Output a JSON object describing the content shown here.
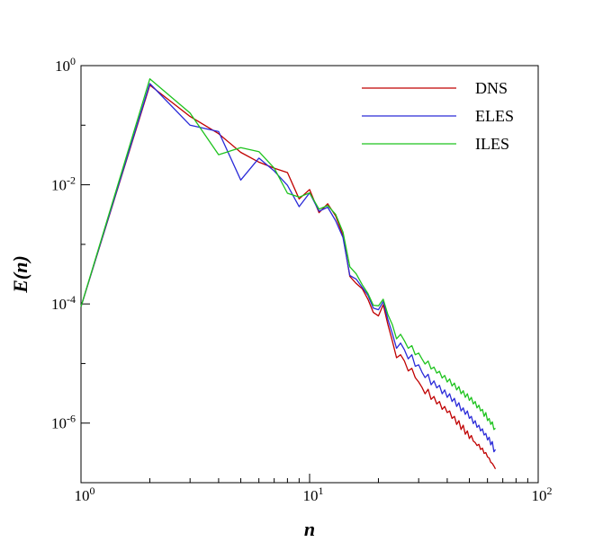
{
  "chart_data": {
    "type": "line",
    "title": "",
    "xlabel": "n",
    "ylabel": "E(n)",
    "xscale": "log",
    "yscale": "log",
    "xlim": [
      1,
      100
    ],
    "ylim": [
      1e-07,
      1
    ],
    "x_ticks": [
      {
        "value": 1,
        "base": "10",
        "exp": "0"
      },
      {
        "value": 10,
        "base": "10",
        "exp": "1"
      },
      {
        "value": 100,
        "base": "10",
        "exp": "2"
      }
    ],
    "y_ticks": [
      {
        "value": 1,
        "base": "10",
        "exp": "0"
      },
      {
        "value": 0.01,
        "base": "10",
        "exp": "-2"
      },
      {
        "value": 0.0001,
        "base": "10",
        "exp": "-4"
      },
      {
        "value": 1e-06,
        "base": "10",
        "exp": "-6"
      }
    ],
    "grid": false,
    "legend_position": "top-right",
    "series": [
      {
        "name": "DNS",
        "color": "#c00000",
        "x": [
          1,
          2,
          3,
          4,
          5,
          6,
          7,
          8,
          9,
          10,
          11,
          12,
          13,
          14,
          15,
          16,
          17,
          18,
          19,
          20,
          21,
          22,
          23,
          24,
          25,
          26,
          27,
          28,
          29,
          30,
          31,
          32,
          33,
          34,
          35,
          36,
          37,
          38,
          39,
          40,
          41,
          42,
          43,
          44,
          45,
          46,
          47,
          48,
          49,
          50,
          51,
          52,
          53,
          54,
          55,
          56,
          57,
          58,
          59,
          60,
          61,
          62,
          63,
          64,
          65
        ],
        "y": [
          9e-05,
          0.47,
          0.14,
          0.072,
          0.035,
          0.024,
          0.019,
          0.016,
          0.0058,
          0.0083,
          0.0034,
          0.0048,
          0.003,
          0.0014,
          0.00029,
          0.00022,
          0.00018,
          0.00012,
          7.2e-05,
          6.3e-05,
          9.7e-05,
          4.5e-05,
          2.4e-05,
          1.25e-05,
          1.4e-05,
          1.1e-05,
          7.5e-06,
          8.3e-06,
          5.8e-06,
          4.9e-06,
          4e-06,
          3.1e-06,
          3.7e-06,
          2.5e-06,
          2.8e-06,
          2.1e-06,
          2.3e-06,
          1.7e-06,
          1.9e-06,
          1.5e-06,
          1.6e-06,
          1.2e-06,
          1.3e-06,
          9.5e-07,
          1.1e-06,
          7.8e-07,
          9.2e-07,
          6.5e-07,
          7.4e-07,
          5.5e-07,
          6.2e-07,
          5e-07,
          4.7e-07,
          4.2e-07,
          4.4e-07,
          3.6e-07,
          3.8e-07,
          3.1e-07,
          3.2e-07,
          2.7e-07,
          2.6e-07,
          2.2e-07,
          2.1e-07,
          1.9e-07,
          1.7e-07
        ]
      },
      {
        "name": "ELES",
        "color": "#2a2ad8",
        "x": [
          1,
          2,
          3,
          4,
          5,
          6,
          7,
          8,
          9,
          10,
          11,
          12,
          13,
          14,
          15,
          16,
          17,
          18,
          19,
          20,
          21,
          22,
          23,
          24,
          25,
          26,
          27,
          28,
          29,
          30,
          31,
          32,
          33,
          34,
          35,
          36,
          37,
          38,
          39,
          40,
          41,
          42,
          43,
          44,
          45,
          46,
          47,
          48,
          49,
          50,
          51,
          52,
          53,
          54,
          55,
          56,
          57,
          58,
          59,
          60,
          61,
          62,
          63,
          64,
          65
        ],
        "y": [
          9e-05,
          0.5,
          0.1,
          0.078,
          0.012,
          0.028,
          0.017,
          0.0098,
          0.0043,
          0.0073,
          0.0036,
          0.0042,
          0.0025,
          0.0013,
          0.0003,
          0.00026,
          0.00019,
          0.00014,
          8.5e-05,
          8e-05,
          0.00011,
          5.5e-05,
          3.2e-05,
          1.8e-05,
          2.2e-05,
          1.7e-05,
          1.2e-05,
          1.4e-05,
          9e-06,
          9.5e-06,
          7.2e-06,
          5.8e-06,
          6.6e-06,
          4.4e-06,
          5.1e-06,
          3.9e-06,
          4.3e-06,
          3.1e-06,
          3.6e-06,
          2.7e-06,
          3.1e-06,
          2.3e-06,
          2.6e-06,
          1.9e-06,
          2.2e-06,
          1.6e-06,
          1.8e-06,
          1.4e-06,
          1.6e-06,
          1.2e-06,
          1.3e-06,
          9.8e-07,
          1.1e-06,
          8.5e-07,
          9.2e-07,
          7.4e-07,
          8e-07,
          6.3e-07,
          6.7e-07,
          5.2e-07,
          5.8e-07,
          4.3e-07,
          4.9e-07,
          3.3e-07,
          3.6e-07
        ]
      },
      {
        "name": "ILES",
        "color": "#1ec31e",
        "x": [
          1,
          2,
          3,
          4,
          5,
          6,
          7,
          8,
          9,
          10,
          11,
          12,
          13,
          14,
          15,
          16,
          17,
          18,
          19,
          20,
          21,
          22,
          23,
          24,
          25,
          26,
          27,
          28,
          29,
          30,
          31,
          32,
          33,
          34,
          35,
          36,
          37,
          38,
          39,
          40,
          41,
          42,
          43,
          44,
          45,
          46,
          47,
          48,
          49,
          50,
          51,
          52,
          53,
          54,
          55,
          56,
          57,
          58,
          59,
          60,
          61,
          62,
          63,
          64,
          65
        ],
        "y": [
          9e-05,
          0.6,
          0.16,
          0.032,
          0.042,
          0.036,
          0.019,
          0.0072,
          0.0062,
          0.0073,
          0.0039,
          0.0045,
          0.0032,
          0.0016,
          0.00042,
          0.00032,
          0.00021,
          0.00015,
          9.5e-05,
          9.3e-05,
          0.00012,
          6.6e-05,
          4.5e-05,
          2.6e-05,
          3.1e-05,
          2.4e-05,
          1.8e-05,
          2e-05,
          1.4e-05,
          1.5e-05,
          1.2e-05,
          9.8e-06,
          1.1e-05,
          8.1e-06,
          8.7e-06,
          6.9e-06,
          7.4e-06,
          5.7e-06,
          6.3e-06,
          4.9e-06,
          5.5e-06,
          4.2e-06,
          4.7e-06,
          3.6e-06,
          4.1e-06,
          3.1e-06,
          3.5e-06,
          2.7e-06,
          3.1e-06,
          2.4e-06,
          2.7e-06,
          2.1e-06,
          2.3e-06,
          1.8e-06,
          2e-06,
          1.6e-06,
          1.7e-06,
          1.3e-06,
          1.5e-06,
          1.1e-06,
          1.2e-06,
          9.5e-07,
          1.05e-06,
          7.8e-07,
          8.2e-07
        ]
      }
    ]
  }
}
